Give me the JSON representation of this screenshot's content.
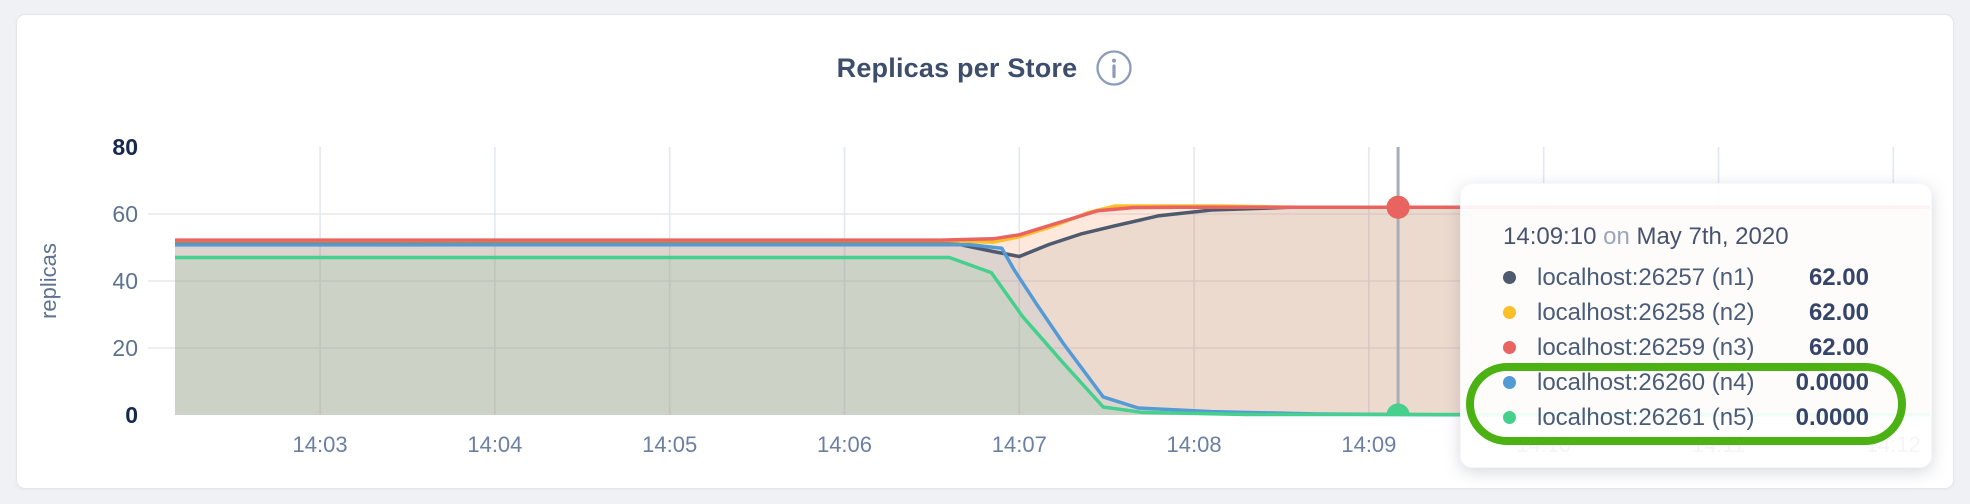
{
  "panel": {
    "title": "Replicas per Store"
  },
  "chart_data": {
    "type": "area",
    "title": "Replicas per Store",
    "xlabel": "",
    "ylabel": "replicas",
    "ylim": [
      0,
      80
    ],
    "x_domain_minutes_after_1400": [
      2.17,
      12.21
    ],
    "grid": true,
    "legend_position": "tooltip",
    "x_ticks": [
      {
        "t": 3,
        "label": "14:03"
      },
      {
        "t": 4,
        "label": "14:04"
      },
      {
        "t": 5,
        "label": "14:05"
      },
      {
        "t": 6,
        "label": "14:06"
      },
      {
        "t": 7,
        "label": "14:07"
      },
      {
        "t": 8,
        "label": "14:08"
      },
      {
        "t": 9,
        "label": "14:09"
      },
      {
        "t": 10,
        "label": "14:10"
      },
      {
        "t": 11,
        "label": "14:11"
      },
      {
        "t": 12,
        "label": "14:12"
      }
    ],
    "y_ticks": [
      {
        "v": 0,
        "label": "0",
        "bold": true,
        "grid": false
      },
      {
        "v": 20,
        "label": "20",
        "bold": false,
        "grid": true
      },
      {
        "v": 40,
        "label": "40",
        "bold": false,
        "grid": true
      },
      {
        "v": 60,
        "label": "60",
        "bold": false,
        "grid": true
      },
      {
        "v": 80,
        "label": "80",
        "bold": true,
        "grid": false
      }
    ],
    "series": [
      {
        "name": "localhost:26257 (n1)",
        "color": "#4e5a6e",
        "points": [
          [
            2.17,
            51
          ],
          [
            6.65,
            51
          ],
          [
            6.85,
            48.8
          ],
          [
            7.0,
            47.3
          ],
          [
            7.17,
            50.9
          ],
          [
            7.35,
            54
          ],
          [
            7.55,
            56.5
          ],
          [
            7.8,
            59.5
          ],
          [
            8.1,
            61.2
          ],
          [
            8.55,
            62
          ],
          [
            12.21,
            62
          ]
        ]
      },
      {
        "name": "localhost:26258 (n2)",
        "color": "#fbbf28",
        "points": [
          [
            2.17,
            52
          ],
          [
            6.6,
            52
          ],
          [
            6.85,
            51.6
          ],
          [
            7.0,
            53.2
          ],
          [
            7.2,
            56.5
          ],
          [
            7.4,
            60.5
          ],
          [
            7.55,
            62.4
          ],
          [
            8.15,
            62.4
          ],
          [
            8.6,
            62
          ],
          [
            12.21,
            62
          ]
        ]
      },
      {
        "name": "localhost:26259 (n3)",
        "color": "#e96361",
        "points": [
          [
            2.17,
            52.2
          ],
          [
            6.55,
            52.2
          ],
          [
            6.85,
            52.6
          ],
          [
            7.0,
            53.8
          ],
          [
            7.2,
            57
          ],
          [
            7.45,
            61
          ],
          [
            7.65,
            61.9
          ],
          [
            7.9,
            62
          ],
          [
            12.21,
            62
          ]
        ]
      },
      {
        "name": "localhost:26260 (n4)",
        "color": "#549bd5",
        "points": [
          [
            2.17,
            50.8
          ],
          [
            6.72,
            50.8
          ],
          [
            6.9,
            49.8
          ],
          [
            6.97,
            43.4
          ],
          [
            7.1,
            33
          ],
          [
            7.25,
            21.5
          ],
          [
            7.48,
            5.4
          ],
          [
            7.68,
            2.1
          ],
          [
            8.1,
            1
          ],
          [
            8.7,
            0.3
          ],
          [
            9.4,
            0.1
          ],
          [
            12.21,
            0.1
          ]
        ]
      },
      {
        "name": "localhost:26261 (n5)",
        "color": "#45d08e",
        "points": [
          [
            2.17,
            47
          ],
          [
            6.6,
            47
          ],
          [
            6.84,
            42.5
          ],
          [
            7.02,
            29.3
          ],
          [
            7.25,
            15.6
          ],
          [
            7.48,
            2.4
          ],
          [
            7.7,
            0.8
          ],
          [
            8.3,
            0.15
          ],
          [
            12.21,
            0.1
          ]
        ]
      }
    ],
    "crosshair": {
      "t": 9.167,
      "values": [
        62,
        62,
        62,
        0,
        0
      ]
    }
  },
  "tooltip": {
    "time": "14:09:10",
    "connector": "on",
    "date": "May 7th, 2020",
    "rows": [
      {
        "label": "localhost:26257 (n1)",
        "value": "62.00",
        "color": "#4e5a6e"
      },
      {
        "label": "localhost:26258 (n2)",
        "value": "62.00",
        "color": "#fbbf28"
      },
      {
        "label": "localhost:26259 (n3)",
        "value": "62.00",
        "color": "#e96361"
      },
      {
        "label": "localhost:26260 (n4)",
        "value": "0.0000",
        "color": "#549bd5"
      },
      {
        "label": "localhost:26261 (n5)",
        "value": "0.0000",
        "color": "#45d08e"
      }
    ]
  },
  "annotation": {
    "color": "#4cb214"
  }
}
